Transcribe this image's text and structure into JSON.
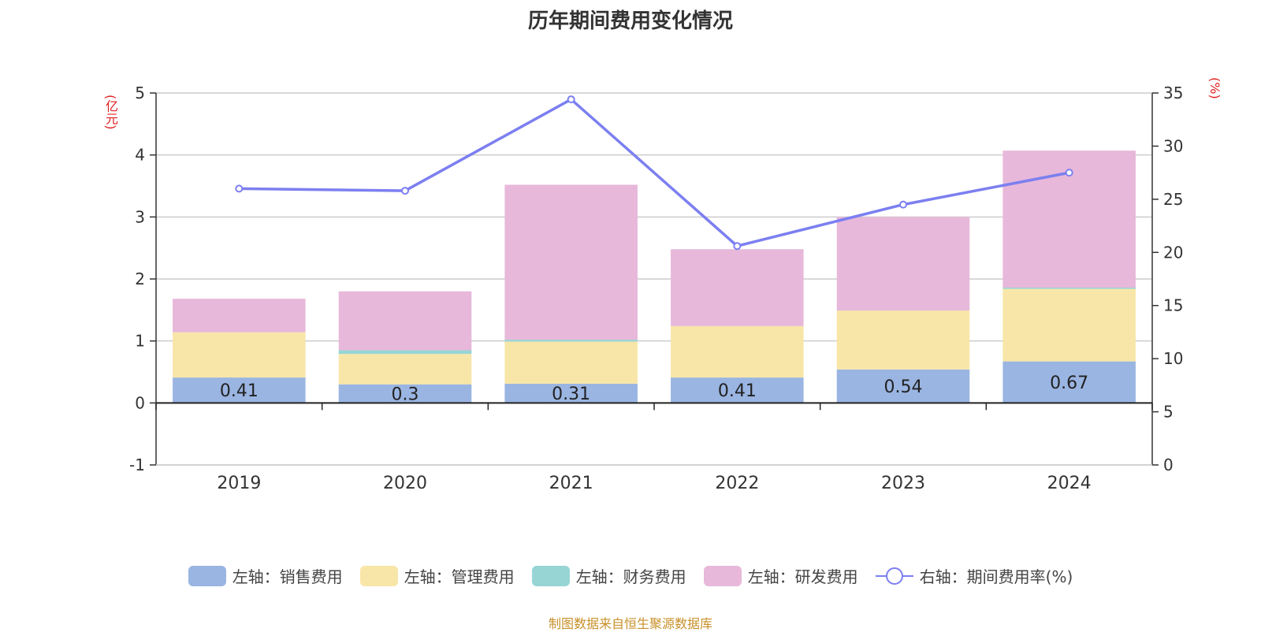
{
  "title": "历年期间费用变化情况",
  "source": "制图数据来自恒生聚源数据库",
  "chart_data": {
    "type": "bar",
    "stacked": true,
    "categories": [
      "2019",
      "2020",
      "2021",
      "2022",
      "2023",
      "2024"
    ],
    "series": [
      {
        "name": "左轴：销售费用",
        "axis": "left",
        "color": "#9ab5e1",
        "values": [
          0.41,
          0.3,
          0.31,
          0.41,
          0.54,
          0.67
        ],
        "labels": [
          "0.41",
          "0.3",
          "0.31",
          "0.41",
          "0.54",
          "0.67"
        ]
      },
      {
        "name": "左轴：管理费用",
        "axis": "left",
        "color": "#f7e6a7",
        "values": [
          0.73,
          0.49,
          0.68,
          0.83,
          0.95,
          1.17
        ]
      },
      {
        "name": "左轴：财务费用",
        "axis": "left",
        "color": "#97d5d5",
        "values": [
          0.0,
          0.06,
          0.03,
          0.0,
          0.0,
          0.02
        ]
      },
      {
        "name": "左轴：研发费用",
        "axis": "left",
        "color": "#e7b8d9",
        "values": [
          0.54,
          0.95,
          2.5,
          1.24,
          1.51,
          2.21
        ]
      }
    ],
    "line": {
      "name": "右轴：期间费用率(%)",
      "axis": "right",
      "color": "#7b7ff0",
      "values": [
        26.0,
        25.8,
        34.4,
        20.6,
        24.5,
        27.5
      ]
    },
    "yleft": {
      "label": "(亿元)",
      "ylim": [
        -1,
        5
      ],
      "ticks": [
        -1,
        0,
        1,
        2,
        3,
        4,
        5
      ]
    },
    "yright": {
      "label": "(%)",
      "ylim": [
        0,
        35
      ],
      "ticks": [
        0,
        5,
        10,
        15,
        20,
        25,
        30,
        35
      ]
    },
    "legend_position": "bottom"
  }
}
